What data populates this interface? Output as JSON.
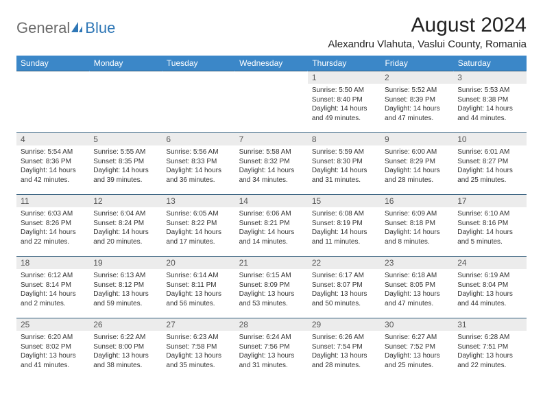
{
  "logo": {
    "general": "General",
    "blue": "Blue"
  },
  "title": "August 2024",
  "location": "Alexandru Vlahuta, Vaslui County, Romania",
  "colors": {
    "header_bg": "#3b87c8",
    "header_text": "#ffffff",
    "daynum_bg": "#ececec",
    "border": "#2f5a7a",
    "logo_gray": "#6b6b6b",
    "logo_blue": "#2f77b6"
  },
  "weekdays": [
    "Sunday",
    "Monday",
    "Tuesday",
    "Wednesday",
    "Thursday",
    "Friday",
    "Saturday"
  ],
  "weeks": [
    [
      {
        "empty": true
      },
      {
        "empty": true
      },
      {
        "empty": true
      },
      {
        "empty": true
      },
      {
        "day": "1",
        "sunrise": "Sunrise: 5:50 AM",
        "sunset": "Sunset: 8:40 PM",
        "daylight": "Daylight: 14 hours and 49 minutes."
      },
      {
        "day": "2",
        "sunrise": "Sunrise: 5:52 AM",
        "sunset": "Sunset: 8:39 PM",
        "daylight": "Daylight: 14 hours and 47 minutes."
      },
      {
        "day": "3",
        "sunrise": "Sunrise: 5:53 AM",
        "sunset": "Sunset: 8:38 PM",
        "daylight": "Daylight: 14 hours and 44 minutes."
      }
    ],
    [
      {
        "day": "4",
        "sunrise": "Sunrise: 5:54 AM",
        "sunset": "Sunset: 8:36 PM",
        "daylight": "Daylight: 14 hours and 42 minutes."
      },
      {
        "day": "5",
        "sunrise": "Sunrise: 5:55 AM",
        "sunset": "Sunset: 8:35 PM",
        "daylight": "Daylight: 14 hours and 39 minutes."
      },
      {
        "day": "6",
        "sunrise": "Sunrise: 5:56 AM",
        "sunset": "Sunset: 8:33 PM",
        "daylight": "Daylight: 14 hours and 36 minutes."
      },
      {
        "day": "7",
        "sunrise": "Sunrise: 5:58 AM",
        "sunset": "Sunset: 8:32 PM",
        "daylight": "Daylight: 14 hours and 34 minutes."
      },
      {
        "day": "8",
        "sunrise": "Sunrise: 5:59 AM",
        "sunset": "Sunset: 8:30 PM",
        "daylight": "Daylight: 14 hours and 31 minutes."
      },
      {
        "day": "9",
        "sunrise": "Sunrise: 6:00 AM",
        "sunset": "Sunset: 8:29 PM",
        "daylight": "Daylight: 14 hours and 28 minutes."
      },
      {
        "day": "10",
        "sunrise": "Sunrise: 6:01 AM",
        "sunset": "Sunset: 8:27 PM",
        "daylight": "Daylight: 14 hours and 25 minutes."
      }
    ],
    [
      {
        "day": "11",
        "sunrise": "Sunrise: 6:03 AM",
        "sunset": "Sunset: 8:26 PM",
        "daylight": "Daylight: 14 hours and 22 minutes."
      },
      {
        "day": "12",
        "sunrise": "Sunrise: 6:04 AM",
        "sunset": "Sunset: 8:24 PM",
        "daylight": "Daylight: 14 hours and 20 minutes."
      },
      {
        "day": "13",
        "sunrise": "Sunrise: 6:05 AM",
        "sunset": "Sunset: 8:22 PM",
        "daylight": "Daylight: 14 hours and 17 minutes."
      },
      {
        "day": "14",
        "sunrise": "Sunrise: 6:06 AM",
        "sunset": "Sunset: 8:21 PM",
        "daylight": "Daylight: 14 hours and 14 minutes."
      },
      {
        "day": "15",
        "sunrise": "Sunrise: 6:08 AM",
        "sunset": "Sunset: 8:19 PM",
        "daylight": "Daylight: 14 hours and 11 minutes."
      },
      {
        "day": "16",
        "sunrise": "Sunrise: 6:09 AM",
        "sunset": "Sunset: 8:18 PM",
        "daylight": "Daylight: 14 hours and 8 minutes."
      },
      {
        "day": "17",
        "sunrise": "Sunrise: 6:10 AM",
        "sunset": "Sunset: 8:16 PM",
        "daylight": "Daylight: 14 hours and 5 minutes."
      }
    ],
    [
      {
        "day": "18",
        "sunrise": "Sunrise: 6:12 AM",
        "sunset": "Sunset: 8:14 PM",
        "daylight": "Daylight: 14 hours and 2 minutes."
      },
      {
        "day": "19",
        "sunrise": "Sunrise: 6:13 AM",
        "sunset": "Sunset: 8:12 PM",
        "daylight": "Daylight: 13 hours and 59 minutes."
      },
      {
        "day": "20",
        "sunrise": "Sunrise: 6:14 AM",
        "sunset": "Sunset: 8:11 PM",
        "daylight": "Daylight: 13 hours and 56 minutes."
      },
      {
        "day": "21",
        "sunrise": "Sunrise: 6:15 AM",
        "sunset": "Sunset: 8:09 PM",
        "daylight": "Daylight: 13 hours and 53 minutes."
      },
      {
        "day": "22",
        "sunrise": "Sunrise: 6:17 AM",
        "sunset": "Sunset: 8:07 PM",
        "daylight": "Daylight: 13 hours and 50 minutes."
      },
      {
        "day": "23",
        "sunrise": "Sunrise: 6:18 AM",
        "sunset": "Sunset: 8:05 PM",
        "daylight": "Daylight: 13 hours and 47 minutes."
      },
      {
        "day": "24",
        "sunrise": "Sunrise: 6:19 AM",
        "sunset": "Sunset: 8:04 PM",
        "daylight": "Daylight: 13 hours and 44 minutes."
      }
    ],
    [
      {
        "day": "25",
        "sunrise": "Sunrise: 6:20 AM",
        "sunset": "Sunset: 8:02 PM",
        "daylight": "Daylight: 13 hours and 41 minutes."
      },
      {
        "day": "26",
        "sunrise": "Sunrise: 6:22 AM",
        "sunset": "Sunset: 8:00 PM",
        "daylight": "Daylight: 13 hours and 38 minutes."
      },
      {
        "day": "27",
        "sunrise": "Sunrise: 6:23 AM",
        "sunset": "Sunset: 7:58 PM",
        "daylight": "Daylight: 13 hours and 35 minutes."
      },
      {
        "day": "28",
        "sunrise": "Sunrise: 6:24 AM",
        "sunset": "Sunset: 7:56 PM",
        "daylight": "Daylight: 13 hours and 31 minutes."
      },
      {
        "day": "29",
        "sunrise": "Sunrise: 6:26 AM",
        "sunset": "Sunset: 7:54 PM",
        "daylight": "Daylight: 13 hours and 28 minutes."
      },
      {
        "day": "30",
        "sunrise": "Sunrise: 6:27 AM",
        "sunset": "Sunset: 7:52 PM",
        "daylight": "Daylight: 13 hours and 25 minutes."
      },
      {
        "day": "31",
        "sunrise": "Sunrise: 6:28 AM",
        "sunset": "Sunset: 7:51 PM",
        "daylight": "Daylight: 13 hours and 22 minutes."
      }
    ]
  ]
}
